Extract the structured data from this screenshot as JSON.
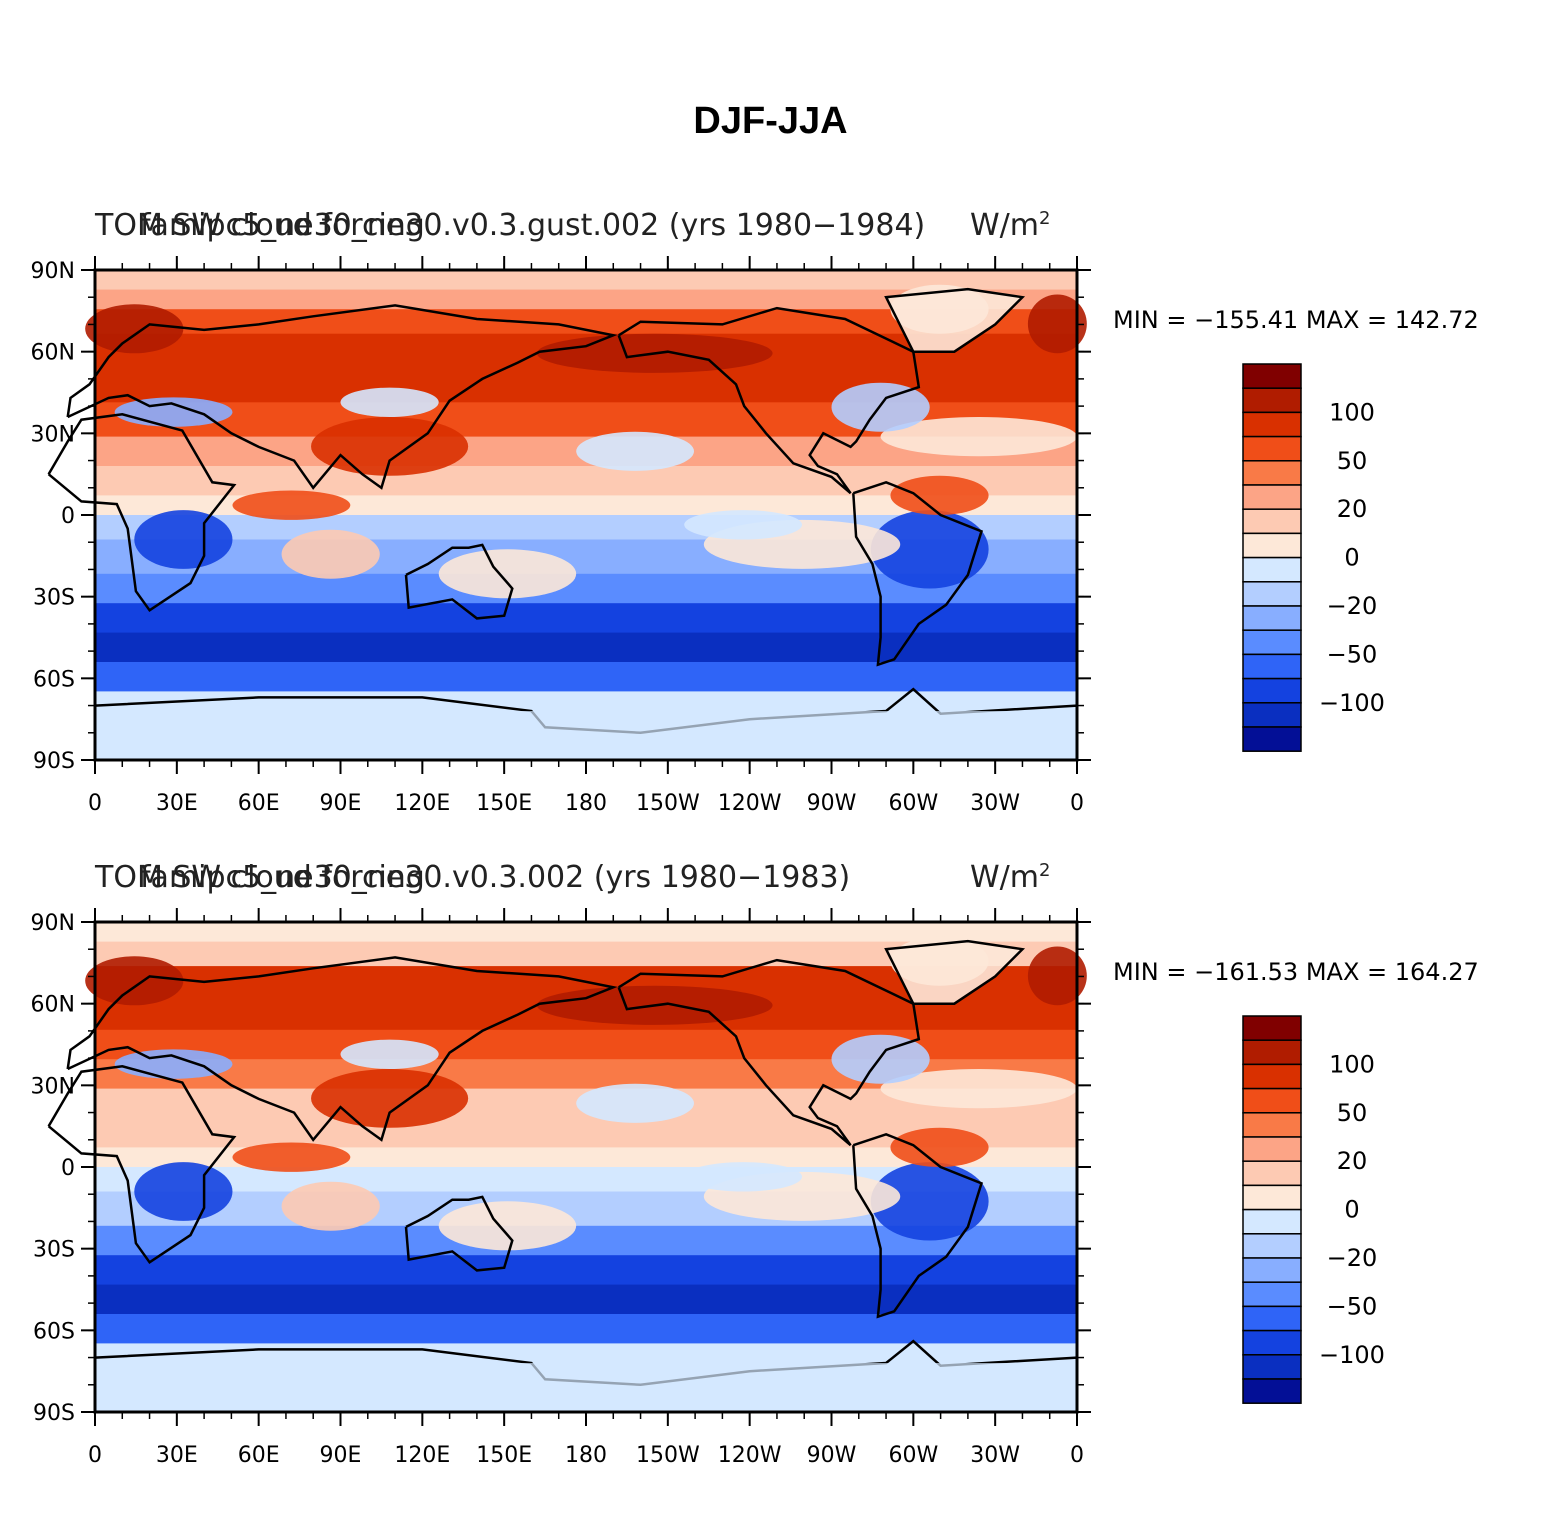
{
  "title": "DJF-JJA",
  "panels": [
    {
      "left_title": "TOM SW cloud forcing",
      "center_title": "famipc5_ne30_ne30.v0.3.gust.002 (yrs 1980−1984)",
      "units": "W/m",
      "units_sup": "2",
      "minmax": "MIN = −155.41  MAX = 142.72"
    },
    {
      "left_title": "TOM SW cloud forcing",
      "center_title": "famipc5_ne30_ne30.v0.3.002 (yrs 1980−1983)",
      "units": "W/m",
      "units_sup": "2",
      "minmax": "MIN = −161.53  MAX = 164.27"
    }
  ],
  "axes": {
    "lon_ticks": [
      "0",
      "30E",
      "60E",
      "90E",
      "120E",
      "150E",
      "180",
      "150W",
      "120W",
      "90W",
      "60W",
      "30W",
      "0"
    ],
    "lat_ticks": [
      "90N",
      "60N",
      "30N",
      "0",
      "30S",
      "60S",
      "90S"
    ]
  },
  "colorbar": {
    "labels": [
      "100",
      "50",
      "20",
      "0",
      "−20",
      "−50",
      "−100"
    ],
    "colors": [
      "#800000",
      "#b01c00",
      "#d93000",
      "#f04e18",
      "#f97a47",
      "#fca486",
      "#fdcab3",
      "#fde8d8",
      "#d4e8ff",
      "#b3ceff",
      "#88aeff",
      "#5a8cff",
      "#2f64f7",
      "#1442e0",
      "#0a2fc0",
      "#030f96"
    ]
  }
}
